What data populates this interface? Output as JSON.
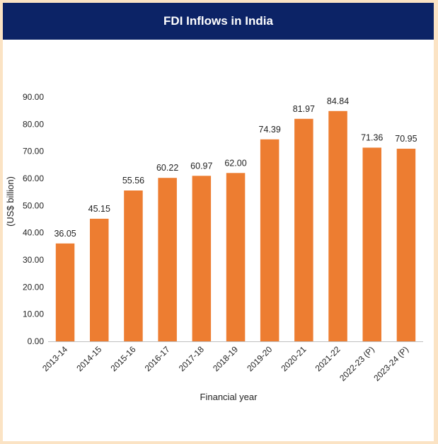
{
  "chart_data": {
    "type": "bar",
    "title": "FDI Inflows in India",
    "xlabel": "Financial year",
    "ylabel": "(US$ billion)",
    "categories": [
      "2013-14",
      "2014-15",
      "2015-16",
      "2016-17",
      "2017-18",
      "2018-19",
      "2019-20",
      "2020-21",
      "2021-22",
      "2022-23 (P)",
      "2023-24 (P)"
    ],
    "values": [
      36.05,
      45.15,
      55.56,
      60.22,
      60.97,
      62.0,
      74.39,
      81.97,
      84.84,
      71.36,
      70.95
    ],
    "data_labels": [
      "36.05",
      "45.15",
      "55.56",
      "60.22",
      "60.97",
      "62.00",
      "74.39",
      "81.97",
      "84.84",
      "71.36",
      "70.95"
    ],
    "yticks": [
      "0.00",
      "10.00",
      "20.00",
      "30.00",
      "40.00",
      "50.00",
      "60.00",
      "70.00",
      "80.00",
      "90.00"
    ],
    "ylim": [
      0,
      90
    ],
    "grid": false,
    "legend": "none",
    "bar_color": "#ed7d31",
    "banner_color": "#0c2366",
    "background_color": "#fbe3c4"
  }
}
